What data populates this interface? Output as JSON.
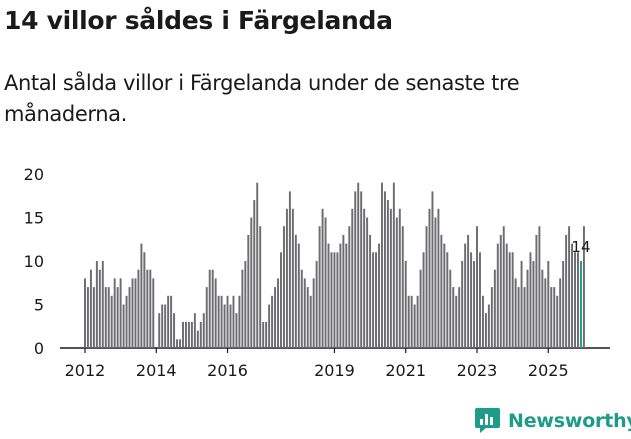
{
  "header": {
    "title": "14 villor såldes i Färgelanda",
    "subtitle": "Antal sålda villor i Färgelanda under de senaste tre månaderna."
  },
  "brand": {
    "name": "Newsworthy",
    "icon": "newsworthy-logo-icon"
  },
  "colors": {
    "bar": "#6d6c70",
    "highlight": "#1d9c8a",
    "text": "#1a1a1a",
    "axis": "#1a1a1a"
  },
  "chart_data": {
    "type": "bar",
    "title": "14 villor såldes i Färgelanda",
    "subtitle": "Antal sålda villor i Färgelanda under de senaste tre månaderna.",
    "xlabel": "",
    "ylabel": "",
    "ylim": [
      0,
      20
    ],
    "grid": false,
    "y_ticks": [
      0,
      5,
      10,
      15,
      20
    ],
    "x_ticks": [
      {
        "label": "2012",
        "index": 0
      },
      {
        "label": "2014",
        "index": 24
      },
      {
        "label": "2016",
        "index": 48
      },
      {
        "label": "2019",
        "index": 84
      },
      {
        "label": "2021",
        "index": 108
      },
      {
        "label": "2023",
        "index": 132
      },
      {
        "label": "2025",
        "index": 156
      }
    ],
    "start": "2012-01",
    "frequency": "monthly, rolling 3-month total",
    "highlight_index": 167,
    "highlight_label": "14",
    "values": [
      8,
      7,
      9,
      7,
      10,
      9,
      10,
      7,
      7,
      6,
      8,
      7,
      8,
      5,
      6,
      7,
      8,
      8,
      9,
      12,
      11,
      9,
      9,
      8,
      0,
      4,
      5,
      5,
      6,
      6,
      4,
      1,
      1,
      3,
      3,
      3,
      3,
      4,
      2,
      3,
      4,
      7,
      9,
      9,
      8,
      6,
      6,
      5,
      6,
      5,
      6,
      4,
      6,
      9,
      10,
      13,
      15,
      17,
      19,
      14,
      3,
      3,
      5,
      6,
      7,
      8,
      11,
      14,
      16,
      18,
      16,
      13,
      12,
      9,
      8,
      7,
      6,
      8,
      10,
      14,
      16,
      15,
      12,
      11,
      11,
      11,
      12,
      13,
      12,
      14,
      16,
      18,
      19,
      18,
      16,
      15,
      13,
      11,
      11,
      12,
      19,
      18,
      17,
      16,
      19,
      15,
      16,
      14,
      10,
      6,
      6,
      5,
      6,
      9,
      11,
      14,
      16,
      18,
      15,
      16,
      13,
      12,
      11,
      9,
      7,
      6,
      7,
      10,
      12,
      13,
      11,
      10,
      14,
      11,
      6,
      4,
      5,
      7,
      9,
      12,
      13,
      14,
      12,
      11,
      11,
      8,
      7,
      10,
      7,
      9,
      11,
      10,
      13,
      14,
      9,
      8,
      10,
      7,
      7,
      6,
      8,
      10,
      13,
      14,
      12,
      11,
      11,
      10,
      14
    ]
  }
}
